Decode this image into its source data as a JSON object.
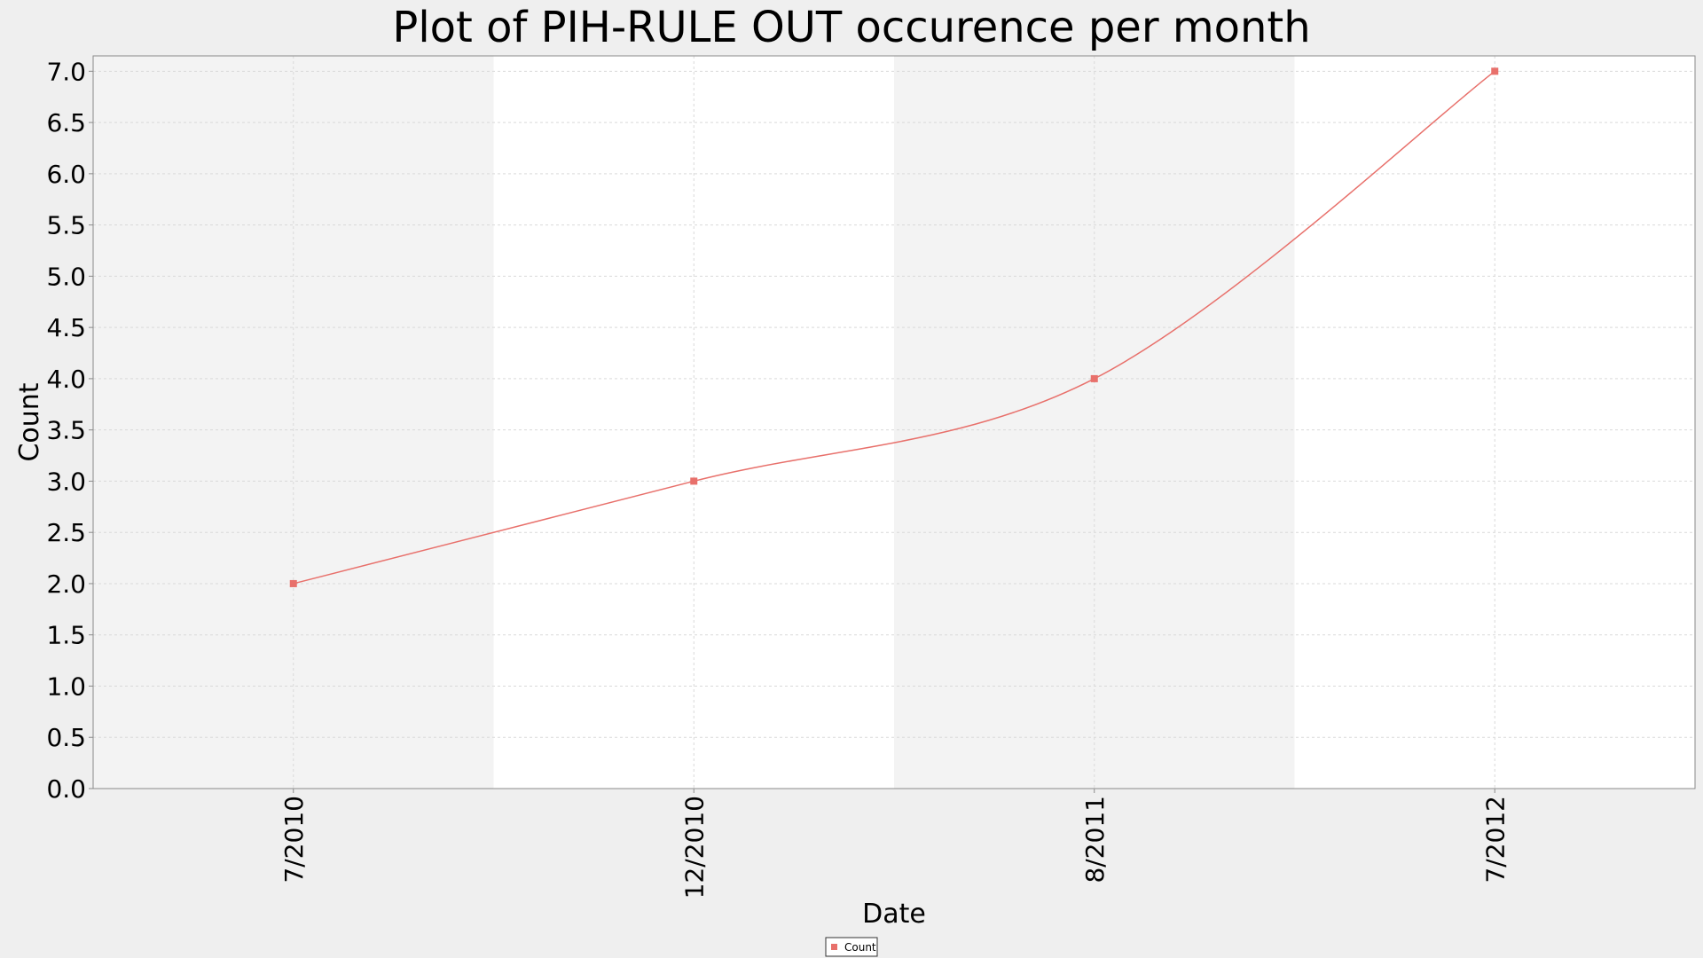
{
  "chart_data": {
    "type": "line",
    "title": "Plot of PIH-RULE OUT occurence per month",
    "xlabel": "Date",
    "ylabel": "Count",
    "categories": [
      "7/2010",
      "12/2010",
      "8/2011",
      "7/2012"
    ],
    "series": [
      {
        "name": "Count",
        "values": [
          2.0,
          3.0,
          4.0,
          7.0
        ]
      }
    ],
    "ylim": [
      0,
      7.15
    ],
    "yticks": [
      "0.0",
      "0.5",
      "1.0",
      "1.5",
      "2.0",
      "2.5",
      "3.0",
      "3.5",
      "4.0",
      "4.5",
      "5.0",
      "5.5",
      "6.0",
      "6.5",
      "7.0"
    ],
    "grid": true,
    "smoothed": true,
    "legend_position": "bottom",
    "colors": {
      "series": "#e8706b",
      "band_alt": "#f3f3f3",
      "plot_bg": "#ffffff",
      "page_bg": "#efefef",
      "gridline": "#d9d9d9"
    }
  }
}
